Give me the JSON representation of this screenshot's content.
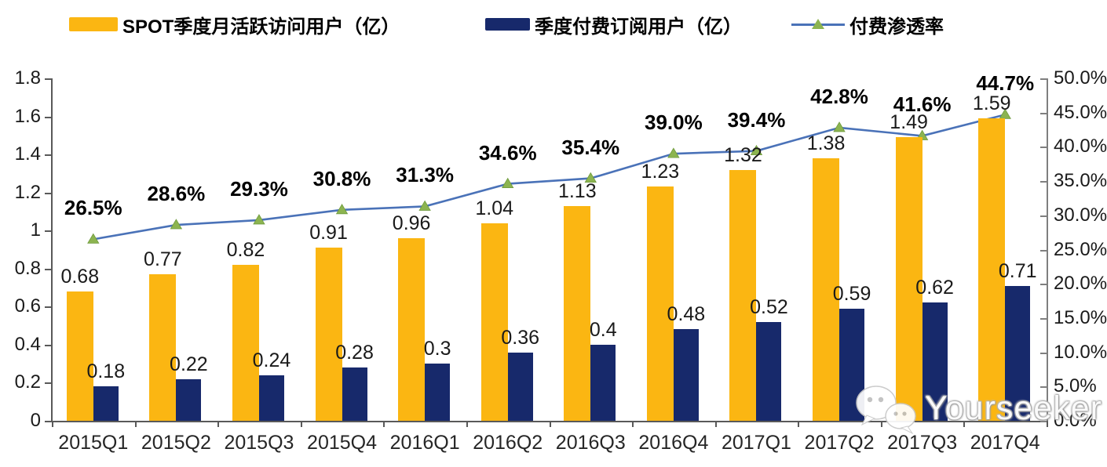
{
  "legend": {
    "items": [
      {
        "label": "SPOT季度月活跃访问用户（亿）",
        "color": "#FBB612",
        "type": "bar"
      },
      {
        "label": "季度付费订阅用户（亿）",
        "color": "#17296B",
        "type": "bar"
      },
      {
        "label": "付费渗透率",
        "color": "#4A72B8",
        "marker_color": "#8CB450",
        "type": "line"
      }
    ]
  },
  "chart_data": {
    "type": "bar",
    "subtype": "grouped bars with secondary-axis line",
    "categories": [
      "2015Q1",
      "2015Q2",
      "2015Q3",
      "2015Q4",
      "2016Q1",
      "2016Q2",
      "2016Q3",
      "2016Q4",
      "2017Q1",
      "2017Q2",
      "2017Q3",
      "2017Q4"
    ],
    "series": [
      {
        "name": "SPOT季度月活跃访问用户（亿）",
        "type": "bar",
        "axis": "left",
        "color": "#FBB612",
        "values": [
          0.68,
          0.77,
          0.82,
          0.91,
          0.96,
          1.04,
          1.13,
          1.23,
          1.32,
          1.38,
          1.49,
          1.59
        ],
        "labels": [
          "0.68",
          "0.77",
          "0.82",
          "0.91",
          "0.96",
          "1.04",
          "1.13",
          "1.23",
          "1.32",
          "1.38",
          "1.49",
          "1.59"
        ]
      },
      {
        "name": "季度付费订阅用户（亿）",
        "type": "bar",
        "axis": "left",
        "color": "#17296B",
        "values": [
          0.18,
          0.22,
          0.24,
          0.28,
          0.3,
          0.36,
          0.4,
          0.48,
          0.52,
          0.59,
          0.62,
          0.71
        ],
        "labels": [
          "0.18",
          "0.22",
          "0.24",
          "0.28",
          "0.3",
          "0.36",
          "0.4",
          "0.48",
          "0.52",
          "0.59",
          "0.62",
          "0.71"
        ]
      },
      {
        "name": "付费渗透率",
        "type": "line",
        "axis": "right",
        "color": "#4A72B8",
        "marker": "triangle",
        "marker_color": "#8CB450",
        "values": [
          26.5,
          28.6,
          29.3,
          30.8,
          31.3,
          34.6,
          35.4,
          39.0,
          39.4,
          42.8,
          41.6,
          44.7
        ],
        "labels": [
          "26.5%",
          "28.6%",
          "29.3%",
          "30.8%",
          "31.3%",
          "34.6%",
          "35.4%",
          "39.0%",
          "39.4%",
          "42.8%",
          "41.6%",
          "44.7%"
        ]
      }
    ],
    "left_axis": {
      "min": 0,
      "max": 1.8,
      "ticks": [
        "0",
        "0.2",
        "0.4",
        "0.6",
        "0.8",
        "1",
        "1.2",
        "1.4",
        "1.6",
        "1.8"
      ]
    },
    "right_axis": {
      "min": 0,
      "max": 50,
      "ticks": [
        "0.0%",
        "5.0%",
        "10.0%",
        "15.0%",
        "20.0%",
        "25.0%",
        "30.0%",
        "35.0%",
        "40.0%",
        "45.0%",
        "50.0%"
      ]
    },
    "grid": false,
    "legend_position": "top",
    "title": ""
  },
  "watermark": {
    "text": "Yourseeker",
    "icon": "wechat-icon"
  }
}
